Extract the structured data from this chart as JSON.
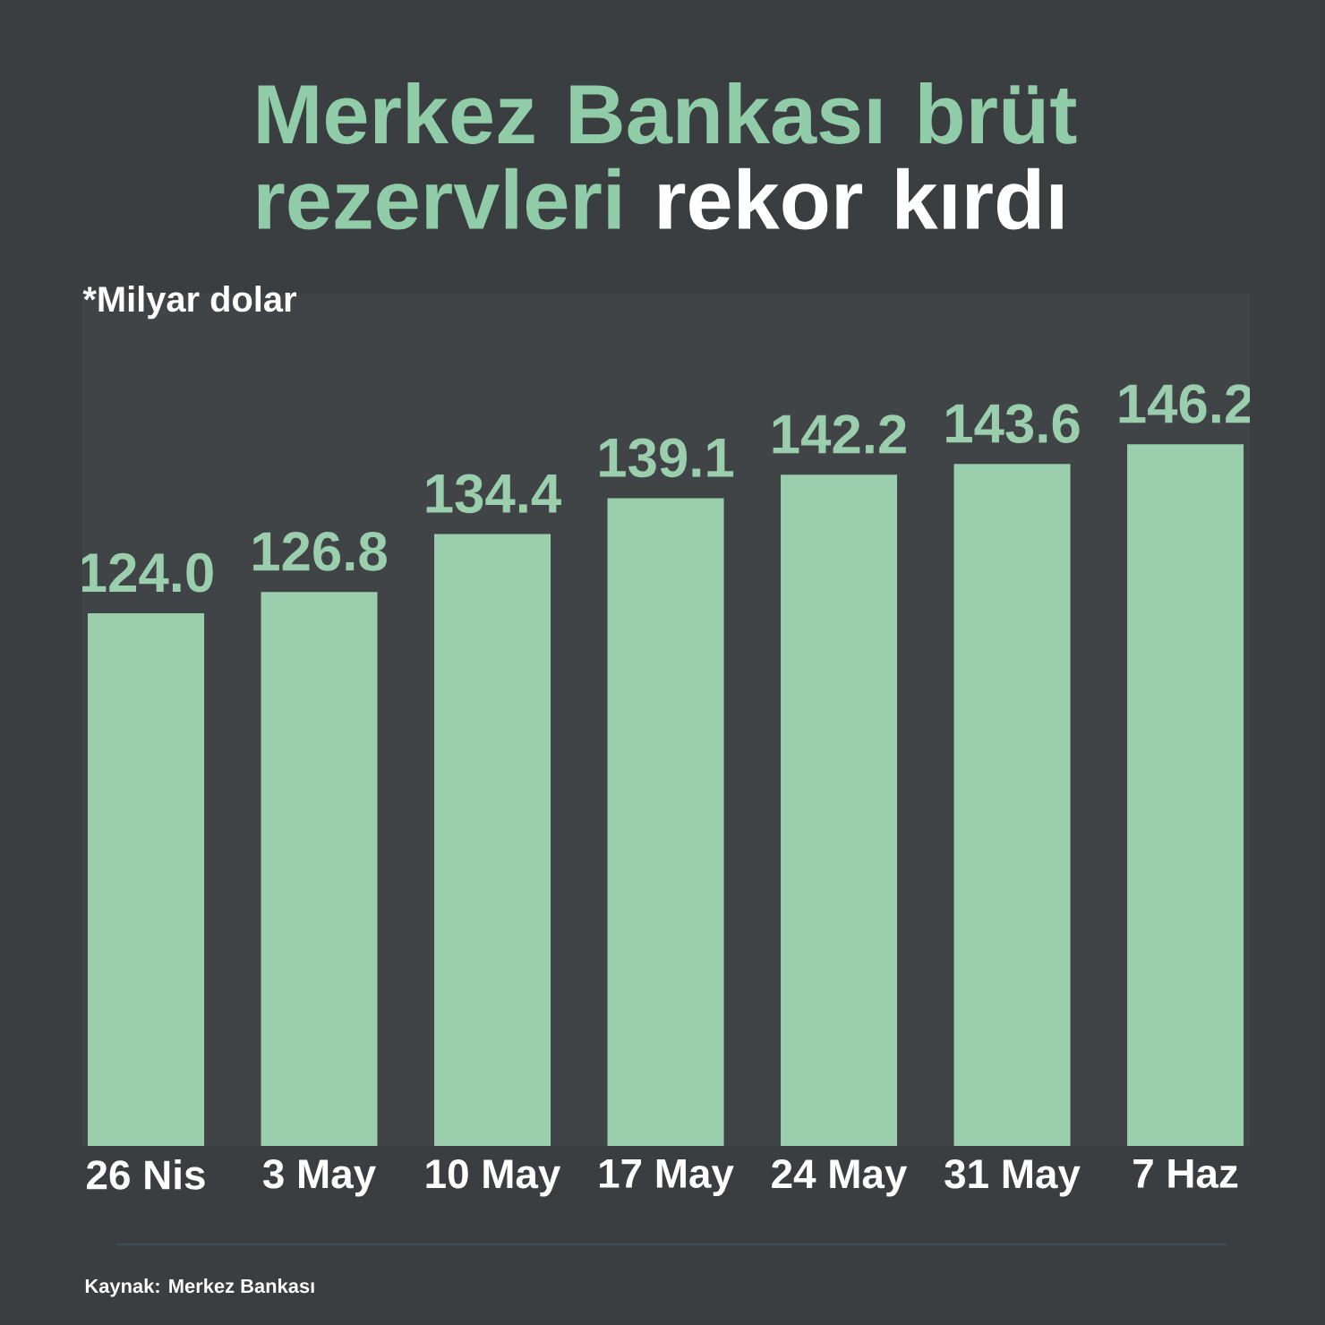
{
  "chart_data": {
    "type": "bar",
    "title": "Merkez Bankası brüt rezervleri **rekor kırdı**",
    "subtitle": "*Milyar dolar",
    "categories": [
      "26 Nis",
      "3 May",
      "10 May",
      "17 May",
      "24 May",
      "31 May",
      "7 Haz"
    ],
    "values": [
      124.0,
      126.8,
      134.4,
      139.1,
      142.2,
      143.6,
      146.2
    ],
    "value_labels": [
      "124.0",
      "126.8",
      "134.4",
      "139.1",
      "142.2",
      "143.6",
      "146.2"
    ],
    "color": "#9bcead",
    "ylim": [
      54,
      166
    ],
    "annotations": [
      "Kaynak: Merkez Bankası"
    ]
  }
}
